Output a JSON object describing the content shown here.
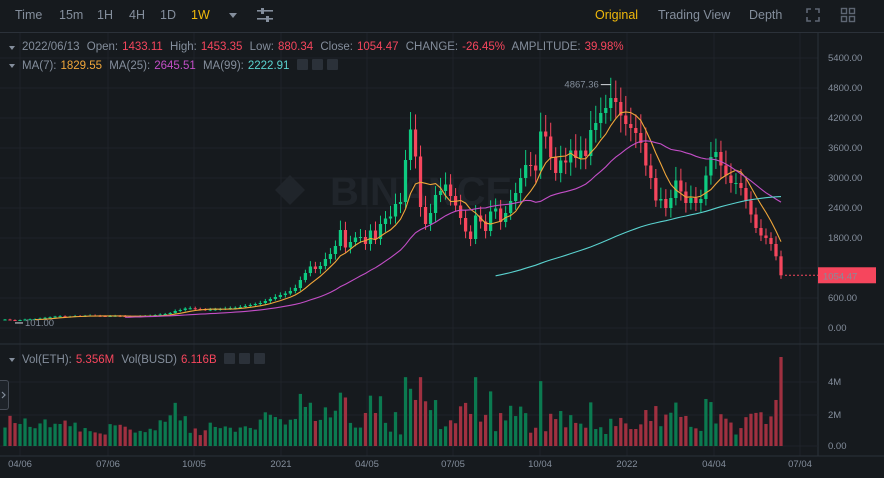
{
  "toolbar": {
    "intervals": [
      "Time",
      "15m",
      "1H",
      "4H",
      "1D",
      "1W"
    ],
    "active_interval": "1W",
    "views": [
      "Original",
      "Trading View",
      "Depth"
    ],
    "active_view": "Original"
  },
  "ohlc": {
    "date": "2022/06/13",
    "open_label": "Open:",
    "open": "1433.11",
    "high_label": "High:",
    "high": "1453.35",
    "low_label": "Low:",
    "low": "880.34",
    "close_label": "Close:",
    "close": "1054.47",
    "change_label": "CHANGE:",
    "change": "-26.45%",
    "amplitude_label": "AMPLITUDE:",
    "amplitude": "39.98%"
  },
  "ma": {
    "ma7_label": "MA(7):",
    "ma7": "1829.55",
    "ma25_label": "MA(25):",
    "ma25": "2645.51",
    "ma99_label": "MA(99):",
    "ma99": "2222.91"
  },
  "vol": {
    "eth_label": "Vol(ETH):",
    "eth": "5.356M",
    "busd_label": "Vol(BUSD)",
    "busd": "6.116B"
  },
  "watermark": "BINANCE",
  "colors": {
    "up": "#0ecb81",
    "down": "#f6465d",
    "ma7": "#f0a63a",
    "ma25": "#c34ec7",
    "ma99": "#5ad2cf",
    "accent": "#f0b90b"
  },
  "chart_data": {
    "type": "candlestick",
    "x_tick_labels": [
      "04/06",
      "07/06",
      "10/05",
      "2021",
      "04/05",
      "07/05",
      "10/04",
      "2022",
      "04/04",
      "07/04"
    ],
    "price_axis": [
      0,
      600,
      1200,
      1800,
      2400,
      3000,
      3600,
      4200,
      4800,
      5400
    ],
    "price_tick_labels": [
      "0.00",
      "600.00",
      "",
      "1800.00",
      "2400.00",
      "3000.00",
      "3600.00",
      "4200.00",
      "4800.00",
      "5400.00"
    ],
    "volume_axis_labels": [
      "0.00",
      "2M",
      "4M"
    ],
    "high_marker": "4867.36",
    "low_marker": "101.00",
    "last_price": "1054.47",
    "close": [
      170,
      160,
      155,
      160,
      170,
      175,
      180,
      190,
      205,
      215,
      230,
      235,
      225,
      230,
      240,
      238,
      245,
      250,
      245,
      240,
      235,
      240,
      245,
      238,
      232,
      228,
      230,
      235,
      240,
      250,
      260,
      270,
      280,
      300,
      340,
      360,
      390,
      395,
      380,
      375,
      360,
      370,
      375,
      380,
      390,
      400,
      405,
      420,
      440,
      460,
      480,
      500,
      540,
      580,
      620,
      660,
      690,
      740,
      800,
      960,
      1100,
      1230,
      1180,
      1240,
      1380,
      1480,
      1640,
      1960,
      1610,
      1720,
      1810,
      1820,
      1680,
      1950,
      1780,
      2080,
      2190,
      2230,
      2480,
      2520,
      3360,
      3970,
      3430,
      2420,
      2080,
      2300,
      2660,
      2740,
      2870,
      2640,
      2450,
      2200,
      1930,
      1780,
      2250,
      2130,
      1940,
      2330,
      2390,
      2120,
      2300,
      2540,
      2700,
      3000,
      3260,
      3250,
      3150,
      3930,
      3830,
      3410,
      3100,
      3350,
      3310,
      3550,
      3400,
      3550,
      3440,
      3960,
      4100,
      4300,
      4400,
      4600,
      4520,
      4250,
      4080,
      4000,
      3900,
      3700,
      3250,
      3000,
      2550,
      2580,
      2400,
      2600,
      2950,
      2730,
      2500,
      2600,
      2500,
      2580,
      3050,
      3420,
      3520,
      3250,
      3050,
      2900,
      2900,
      2800,
      2550,
      2270,
      2000,
      1850,
      1800,
      1680,
      1434,
      1054
    ]
  }
}
